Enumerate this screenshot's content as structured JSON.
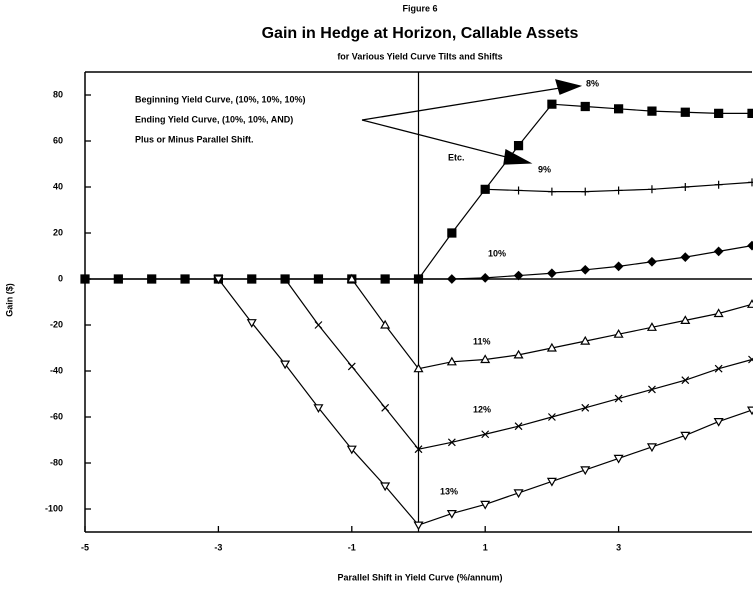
{
  "chart_data": {
    "type": "line",
    "figure": "Figure 6",
    "title": "Gain in Hedge at Horizon, Callable Assets",
    "subtitle": "for Various Yield Curve Tilts and Shifts",
    "xlabel": "Parallel Shift in Yield Curve (%/annum)",
    "ylabel": "Gain ($)",
    "annotations": [
      "Beginning Yield Curve, (10%, 10%, 10%)",
      "Ending Yield Curve, (10%, 10%, AND)",
      "Plus or Minus Parallel Shift.",
      "Etc."
    ],
    "x": [
      -5,
      -4.5,
      -4,
      -3.5,
      -3,
      -2.5,
      -2,
      -1.5,
      -1,
      -0.5,
      0,
      0.5,
      1,
      1.5,
      2,
      2.5,
      3,
      3.5,
      4,
      4.5,
      5
    ],
    "series": [
      {
        "name": "8%",
        "color": "#000000",
        "marker": "square",
        "values": [
          0,
          0,
          0,
          0,
          0,
          0,
          0,
          0,
          0,
          0,
          0,
          20,
          39,
          58,
          76,
          75,
          74,
          73,
          72.5,
          72,
          72
        ]
      },
      {
        "name": "9%",
        "color": "#000000",
        "marker": "plus",
        "values": [
          null,
          null,
          null,
          null,
          null,
          null,
          null,
          null,
          null,
          null,
          null,
          null,
          39,
          38.5,
          38,
          38,
          38.5,
          39,
          40,
          41,
          42
        ]
      },
      {
        "name": "10%",
        "color": "#000000",
        "marker": "diamond",
        "values": [
          null,
          null,
          null,
          null,
          null,
          null,
          null,
          null,
          null,
          null,
          0,
          0,
          0.5,
          1.5,
          2.5,
          4,
          5.5,
          7.5,
          9.5,
          12,
          14.5
        ]
      },
      {
        "name": "11%",
        "color": "#000000",
        "marker": "triangle-up",
        "values": [
          null,
          null,
          null,
          null,
          null,
          null,
          null,
          null,
          0,
          -20,
          -39,
          -36,
          -35,
          -33,
          -30,
          -27,
          -24,
          -21,
          -18,
          -15,
          -11
        ]
      },
      {
        "name": "12%",
        "color": "#000000",
        "marker": "x",
        "values": [
          null,
          null,
          null,
          null,
          null,
          null,
          0,
          -20,
          -38,
          -56,
          -74,
          -71,
          -67.5,
          -64,
          -60,
          -56,
          -52,
          -48,
          -44,
          -39,
          -35
        ]
      },
      {
        "name": "13%",
        "color": "#000000",
        "marker": "triangle-down",
        "values": [
          null,
          null,
          null,
          null,
          0,
          -19,
          -37,
          -56,
          -74,
          -90,
          -107,
          -102,
          -98,
          -93,
          -88,
          -83,
          -78,
          -73,
          -68,
          -62,
          -57
        ]
      }
    ],
    "xlim": [
      -5,
      5
    ],
    "xticks": [
      -5,
      -3,
      -1,
      1,
      3
    ],
    "ylim": [
      -110,
      90
    ],
    "yticks": [
      80,
      60,
      40,
      20,
      0,
      -20,
      -40,
      -60,
      -80,
      -100
    ]
  }
}
